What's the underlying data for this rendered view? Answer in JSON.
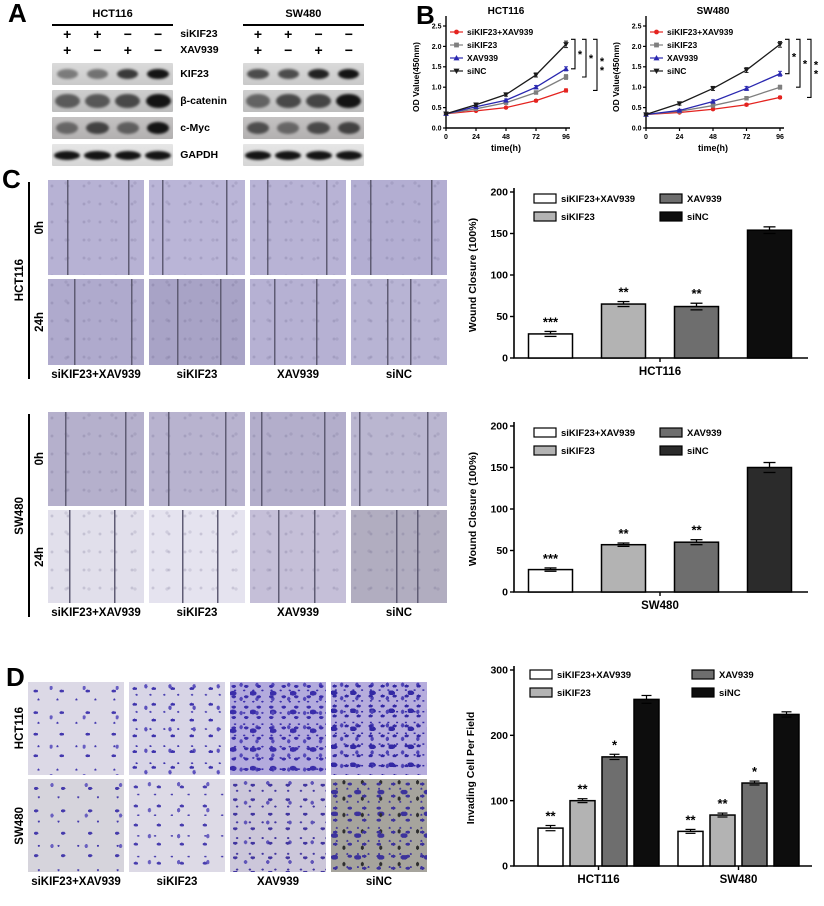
{
  "panel_a": {
    "label": "A",
    "condition_rows": [
      "siKIF23",
      "XAV939"
    ],
    "protein_labels": [
      "KIF23",
      "β-catenin",
      "c-Myc",
      "GAPDH"
    ],
    "groups": [
      {
        "name": "HCT116",
        "signs": [
          [
            "+",
            "+",
            "−",
            "−"
          ],
          [
            "+",
            "−",
            "+",
            "−"
          ]
        ],
        "band_intensities": [
          [
            0.45,
            0.5,
            0.8,
            1.0
          ],
          [
            0.6,
            0.62,
            0.7,
            1.0
          ],
          [
            0.5,
            0.72,
            0.55,
            1.0
          ],
          [
            1,
            1,
            1,
            1
          ]
        ]
      },
      {
        "name": "SW480",
        "signs": [
          [
            "+",
            "+",
            "−",
            "−"
          ],
          [
            "+",
            "−",
            "+",
            "−"
          ]
        ],
        "band_intensities": [
          [
            0.7,
            0.7,
            0.92,
            1.0
          ],
          [
            0.55,
            0.7,
            0.72,
            1.0
          ],
          [
            0.65,
            0.5,
            0.68,
            0.72
          ],
          [
            1,
            1,
            1,
            1
          ]
        ]
      }
    ]
  },
  "panel_b": {
    "label": "B"
  },
  "panel_c": {
    "label": "C",
    "sections": [
      {
        "cell_line": "HCT116",
        "row_labels": [
          "0h",
          "24h"
        ],
        "column_labels": [
          "siKIF23+XAV939",
          "siKIF23",
          "XAV939",
          "siNC"
        ]
      },
      {
        "cell_line": "SW480",
        "row_labels": [
          "0h",
          "24h"
        ],
        "column_labels": [
          "siKIF23+XAV939",
          "siKIF23",
          "XAV939",
          "siNC"
        ]
      }
    ]
  },
  "panel_d": {
    "label": "D",
    "row_labels": [
      "HCT116",
      "SW480"
    ],
    "column_labels": [
      "siKIF23+XAV939",
      "siKIF23",
      "XAV939",
      "siNC"
    ]
  },
  "colors": {
    "series_red": "#e4231f",
    "series_gray": "#7f7f7f",
    "series_blue": "#2a28b0",
    "series_black": "#1a1a1a",
    "bar_white": "#ffffff",
    "bar_lightgray": "#b3b3b3",
    "bar_darkgray": "#6e6e6e",
    "bar_black": "#0d0d0d",
    "bar_charcoal": "#2b2b2b",
    "wound_bg": "#b7b2d4",
    "invasion_dot": "#3b2fb5"
  },
  "chart_data": [
    {
      "id": "b_hct116",
      "type": "line",
      "title": "HCT116",
      "xlabel": "time(h)",
      "ylabel": "OD Value(450nm)",
      "x": [
        0,
        24,
        48,
        72,
        96
      ],
      "ylim": [
        0,
        2.5
      ],
      "yticks": [
        0,
        0.5,
        1.0,
        1.5,
        2.0,
        2.5
      ],
      "legend_position": "top-left inside",
      "grid": false,
      "series": [
        {
          "name": "siKIF23+XAV939",
          "color": "#e4231f",
          "marker": "circle",
          "values": [
            0.35,
            0.42,
            0.5,
            0.67,
            0.92
          ],
          "err": [
            0.02,
            0.02,
            0.02,
            0.03,
            0.04
          ]
        },
        {
          "name": "siKIF23",
          "color": "#7f7f7f",
          "marker": "square",
          "values": [
            0.35,
            0.47,
            0.62,
            0.87,
            1.25
          ],
          "err": [
            0.02,
            0.03,
            0.03,
            0.04,
            0.06
          ]
        },
        {
          "name": "XAV939",
          "color": "#2a28b0",
          "marker": "triangle",
          "values": [
            0.35,
            0.52,
            0.68,
            1.0,
            1.45
          ],
          "err": [
            0.02,
            0.03,
            0.03,
            0.04,
            0.05
          ]
        },
        {
          "name": "siNC",
          "color": "#1a1a1a",
          "marker": "triangle-down",
          "values": [
            0.35,
            0.57,
            0.82,
            1.3,
            2.05
          ],
          "err": [
            0.02,
            0.04,
            0.04,
            0.05,
            0.08
          ]
        }
      ],
      "significance": [
        {
          "vs": "XAV939",
          "stars": "*"
        },
        {
          "vs": "siKIF23",
          "stars": "*"
        },
        {
          "vs": "siKIF23+XAV939",
          "stars": "**"
        }
      ]
    },
    {
      "id": "b_sw480",
      "type": "line",
      "title": "SW480",
      "xlabel": "time(h)",
      "ylabel": "OD Value(450nm)",
      "x": [
        0,
        24,
        48,
        72,
        96
      ],
      "ylim": [
        0,
        2.5
      ],
      "yticks": [
        0,
        0.5,
        1.0,
        1.5,
        2.0,
        2.5
      ],
      "legend_position": "top-left inside",
      "grid": false,
      "series": [
        {
          "name": "siKIF23+XAV939",
          "color": "#e4231f",
          "marker": "circle",
          "values": [
            0.33,
            0.38,
            0.46,
            0.57,
            0.75
          ],
          "err": [
            0.02,
            0.02,
            0.02,
            0.03,
            0.03
          ]
        },
        {
          "name": "siKIF23",
          "color": "#7f7f7f",
          "marker": "square",
          "values": [
            0.33,
            0.41,
            0.55,
            0.73,
            1.0
          ],
          "err": [
            0.02,
            0.03,
            0.03,
            0.04,
            0.05
          ]
        },
        {
          "name": "XAV939",
          "color": "#2a28b0",
          "marker": "triangle",
          "values": [
            0.33,
            0.43,
            0.65,
            0.97,
            1.33
          ],
          "err": [
            0.02,
            0.03,
            0.04,
            0.05,
            0.06
          ]
        },
        {
          "name": "siNC",
          "color": "#1a1a1a",
          "marker": "triangle-down",
          "values": [
            0.33,
            0.6,
            0.97,
            1.42,
            2.05
          ],
          "err": [
            0.02,
            0.04,
            0.05,
            0.06,
            0.07
          ]
        }
      ],
      "significance": [
        {
          "vs": "XAV939",
          "stars": "*"
        },
        {
          "vs": "siKIF23",
          "stars": "*"
        },
        {
          "vs": "siKIF23+XAV939",
          "stars": "**"
        }
      ]
    },
    {
      "id": "c_hct116",
      "type": "bar",
      "title": "",
      "ylabel": "Wound Closure (100%)",
      "ylim": [
        0,
        200
      ],
      "yticks": [
        0,
        50,
        100,
        150,
        200
      ],
      "group_label": "HCT116",
      "grid": false,
      "legend_position": "top inside, two columns",
      "bars": [
        {
          "name": "siKIF23+XAV939",
          "fill": "#ffffff",
          "value": 29,
          "err": 3,
          "sig": "***"
        },
        {
          "name": "siKIF23",
          "fill": "#b3b3b3",
          "value": 65,
          "err": 3,
          "sig": "**"
        },
        {
          "name": "XAV939",
          "fill": "#6e6e6e",
          "value": 62,
          "err": 4,
          "sig": "**"
        },
        {
          "name": "siNC",
          "fill": "#0d0d0d",
          "value": 154,
          "err": 4,
          "sig": ""
        }
      ]
    },
    {
      "id": "c_sw480",
      "type": "bar",
      "title": "",
      "ylabel": "Wound Closure (100%)",
      "ylim": [
        0,
        200
      ],
      "yticks": [
        0,
        50,
        100,
        150,
        200
      ],
      "group_label": "SW480",
      "grid": false,
      "legend_position": "top inside, two columns",
      "bars": [
        {
          "name": "siKIF23+XAV939",
          "fill": "#ffffff",
          "value": 27,
          "err": 2,
          "sig": "***"
        },
        {
          "name": "siKIF23",
          "fill": "#b3b3b3",
          "value": 57,
          "err": 2,
          "sig": "**"
        },
        {
          "name": "XAV939",
          "fill": "#6e6e6e",
          "value": 60,
          "err": 3,
          "sig": "**"
        },
        {
          "name": "siNC",
          "fill": "#2b2b2b",
          "value": 150,
          "err": 6,
          "sig": ""
        }
      ]
    },
    {
      "id": "d_invasion",
      "type": "grouped-bar",
      "title": "",
      "ylabel": "Invading Cell Per Field",
      "ylim": [
        0,
        300
      ],
      "yticks": [
        0,
        100,
        200,
        300
      ],
      "groups": [
        "HCT116",
        "SW480"
      ],
      "grid": false,
      "legend_position": "top inside, two columns",
      "series": [
        {
          "name": "siKIF23+XAV939",
          "fill": "#ffffff",
          "values": [
            58,
            53
          ],
          "err": [
            4,
            3
          ],
          "sig": [
            "**",
            "**"
          ]
        },
        {
          "name": "siKIF23",
          "fill": "#b3b3b3",
          "values": [
            100,
            78
          ],
          "err": [
            3,
            3
          ],
          "sig": [
            "**",
            "**"
          ]
        },
        {
          "name": "XAV939",
          "fill": "#6e6e6e",
          "values": [
            167,
            127
          ],
          "err": [
            4,
            3
          ],
          "sig": [
            "*",
            "*"
          ]
        },
        {
          "name": "siNC",
          "fill": "#0d0d0d",
          "values": [
            255,
            232
          ],
          "err": [
            6,
            4
          ],
          "sig": [
            "",
            ""
          ]
        }
      ]
    }
  ]
}
